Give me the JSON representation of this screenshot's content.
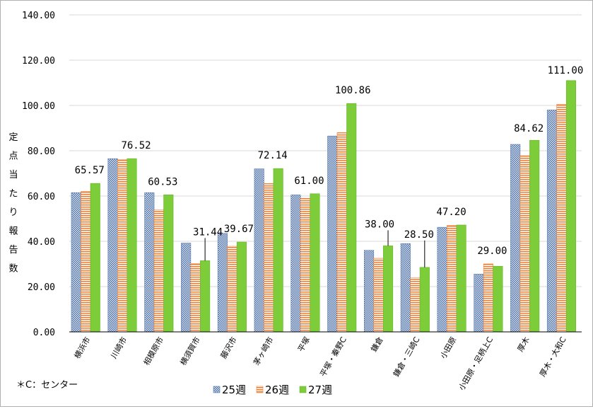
{
  "chart_data": {
    "type": "bar",
    "title": "",
    "xlabel": "",
    "ylabel": "定点当たり報告数",
    "ylim": [
      0,
      140
    ],
    "y_ticks": [
      "0.00",
      "20.00",
      "40.00",
      "60.00",
      "80.00",
      "100.00",
      "120.00",
      "140.00"
    ],
    "grid": true,
    "legend_position": "bottom",
    "categories": [
      "横浜市",
      "川崎市",
      "相模原市",
      "横須賀市",
      "藤沢市",
      "茅ヶ崎市",
      "平塚",
      "平塚・秦野C",
      "鎌倉",
      "鎌倉・三崎C",
      "小田原",
      "小田原・足柄上C",
      "厚木",
      "厚木・大和C"
    ],
    "series": [
      {
        "name": "25週",
        "color": "#9fb6d8",
        "values": [
          61.5,
          76.5,
          61.5,
          39.2,
          43.5,
          72.0,
          60.5,
          86.5,
          36.0,
          39.0,
          46.2,
          25.5,
          82.8,
          98.0
        ]
      },
      {
        "name": "26週",
        "color": "#ed7d31",
        "values": [
          62.0,
          76.0,
          54.0,
          30.2,
          37.8,
          65.5,
          59.0,
          88.0,
          32.5,
          24.0,
          47.0,
          30.0,
          77.8,
          100.5
        ]
      },
      {
        "name": "27週",
        "color": "#7dcd3a",
        "values": [
          65.57,
          76.52,
          60.53,
          31.44,
          39.67,
          72.14,
          61.0,
          100.86,
          38.0,
          28.5,
          47.2,
          29.0,
          84.62,
          111.0
        ]
      }
    ],
    "data_labels": [
      "65.57",
      "76.52",
      "60.53",
      "31.44",
      "39.67",
      "72.14",
      "61.00",
      "100.86",
      "38.00",
      "28.50",
      "47.20",
      "29.00",
      "84.62",
      "111.00"
    ]
  },
  "footnote": "＊C：センター",
  "colors": {
    "grid": "#d9d9d9",
    "axis": "#000000"
  }
}
